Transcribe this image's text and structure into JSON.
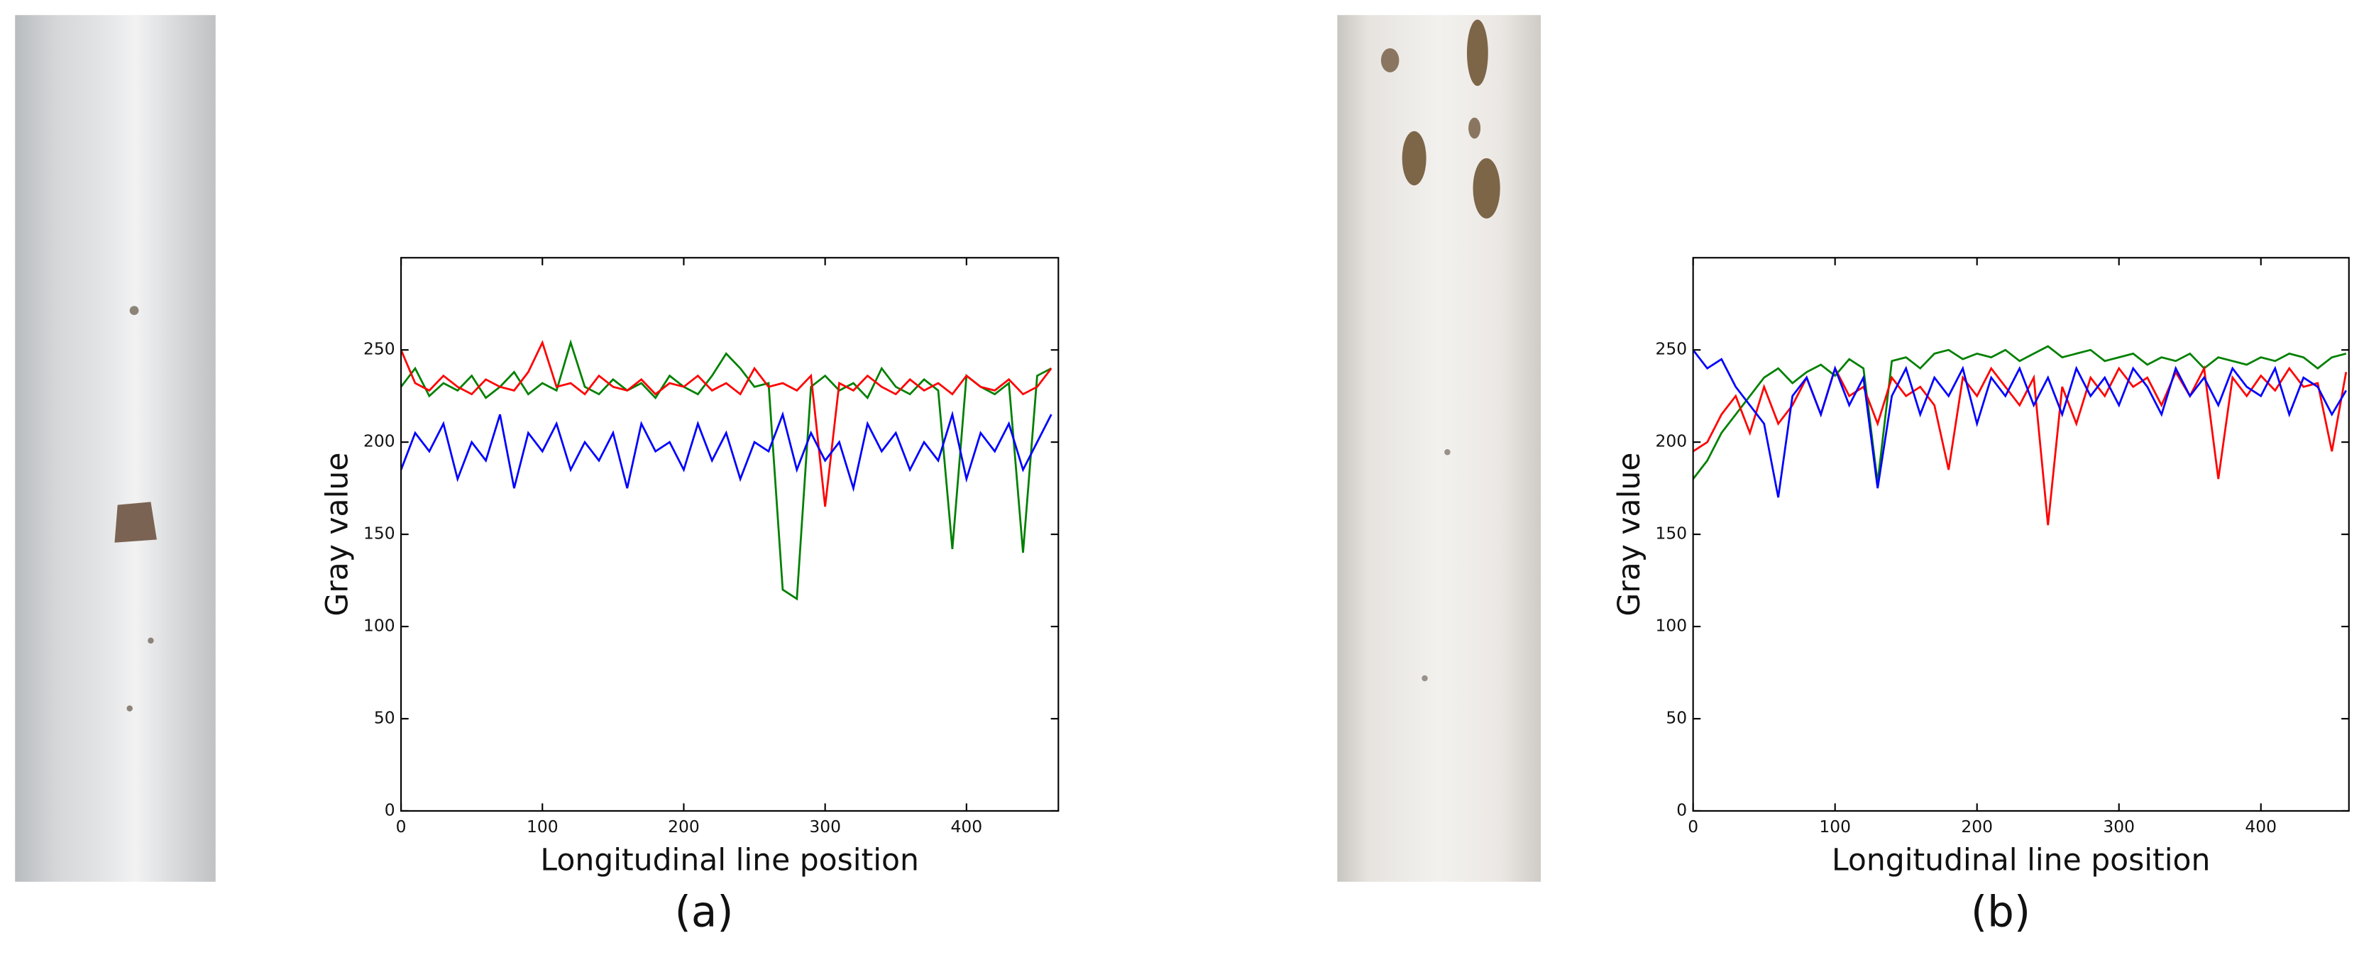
{
  "chart_data": [
    {
      "type": "line",
      "caption": "(a)",
      "xlabel": "Longitudinal line position",
      "ylabel": "Gray value",
      "x": [
        0,
        10,
        20,
        30,
        40,
        50,
        60,
        70,
        80,
        90,
        100,
        110,
        120,
        130,
        140,
        150,
        160,
        170,
        180,
        190,
        200,
        210,
        220,
        230,
        240,
        250,
        260,
        270,
        280,
        290,
        300,
        310,
        320,
        330,
        340,
        350,
        360,
        370,
        380,
        390,
        400,
        410,
        420,
        430,
        440,
        450,
        460
      ],
      "series": [
        {
          "color": "#008000",
          "values": [
            230,
            240,
            225,
            232,
            228,
            236,
            224,
            230,
            238,
            226,
            232,
            228,
            254,
            230,
            226,
            234,
            228,
            232,
            224,
            236,
            230,
            226,
            236,
            248,
            240,
            230,
            232,
            120,
            115,
            230,
            236,
            228,
            232,
            224,
            240,
            230,
            226,
            234,
            228,
            142,
            236,
            230,
            226,
            232,
            140,
            236,
            240
          ]
        },
        {
          "color": "#ff0000",
          "values": [
            250,
            232,
            228,
            236,
            230,
            226,
            234,
            230,
            228,
            238,
            254,
            230,
            232,
            226,
            236,
            230,
            228,
            234,
            226,
            232,
            230,
            236,
            228,
            232,
            226,
            240,
            230,
            232,
            228,
            236,
            165,
            232,
            228,
            236,
            230,
            226,
            234,
            228,
            232,
            226,
            236,
            230,
            228,
            234,
            226,
            230,
            240
          ]
        },
        {
          "color": "#0000ff",
          "values": [
            185,
            205,
            195,
            210,
            180,
            200,
            190,
            215,
            175,
            205,
            195,
            210,
            185,
            200,
            190,
            205,
            175,
            210,
            195,
            200,
            185,
            210,
            190,
            205,
            180,
            200,
            195,
            215,
            185,
            205,
            190,
            200,
            175,
            210,
            195,
            205,
            185,
            200,
            190,
            215,
            180,
            205,
            195,
            210,
            185,
            200,
            215
          ]
        }
      ],
      "xlim": [
        0,
        465
      ],
      "ylim": [
        0,
        300
      ],
      "xticks": [
        0,
        100,
        200,
        300,
        400
      ],
      "yticks": [
        0,
        50,
        100,
        150,
        200,
        250
      ]
    },
    {
      "type": "line",
      "caption": "(b)",
      "xlabel": "Longitudinal line position",
      "ylabel": "Gray value",
      "x": [
        0,
        10,
        20,
        30,
        40,
        50,
        60,
        70,
        80,
        90,
        100,
        110,
        120,
        130,
        140,
        150,
        160,
        170,
        180,
        190,
        200,
        210,
        220,
        230,
        240,
        250,
        260,
        270,
        280,
        290,
        300,
        310,
        320,
        330,
        340,
        350,
        360,
        370,
        380,
        390,
        400,
        410,
        420,
        430,
        440,
        450,
        460
      ],
      "series": [
        {
          "color": "#008000",
          "values": [
            180,
            190,
            205,
            215,
            225,
            235,
            240,
            232,
            238,
            242,
            236,
            245,
            240,
            178,
            244,
            246,
            240,
            248,
            250,
            245,
            248,
            246,
            250,
            244,
            248,
            252,
            246,
            248,
            250,
            244,
            246,
            248,
            242,
            246,
            244,
            248,
            240,
            246,
            244,
            242,
            246,
            244,
            248,
            246,
            240,
            246,
            248
          ]
        },
        {
          "color": "#ff0000",
          "values": [
            195,
            200,
            215,
            225,
            205,
            230,
            210,
            220,
            235,
            215,
            240,
            225,
            230,
            210,
            235,
            225,
            230,
            220,
            185,
            235,
            225,
            240,
            230,
            220,
            235,
            155,
            230,
            210,
            235,
            225,
            240,
            230,
            235,
            220,
            238,
            225,
            240,
            180,
            235,
            225,
            236,
            228,
            240,
            230,
            232,
            195,
            238
          ]
        },
        {
          "color": "#0000ff",
          "values": [
            250,
            240,
            245,
            230,
            220,
            210,
            170,
            225,
            235,
            215,
            240,
            220,
            235,
            175,
            225,
            240,
            215,
            235,
            225,
            240,
            210,
            235,
            225,
            240,
            220,
            235,
            215,
            240,
            225,
            235,
            220,
            240,
            230,
            215,
            240,
            225,
            235,
            220,
            240,
            230,
            225,
            240,
            215,
            235,
            230,
            215,
            228
          ]
        }
      ],
      "xlim": [
        0,
        462
      ],
      "ylim": [
        0,
        300
      ],
      "xticks": [
        0,
        100,
        200,
        300,
        400
      ],
      "yticks": [
        0,
        50,
        100,
        150,
        200,
        250
      ]
    }
  ]
}
